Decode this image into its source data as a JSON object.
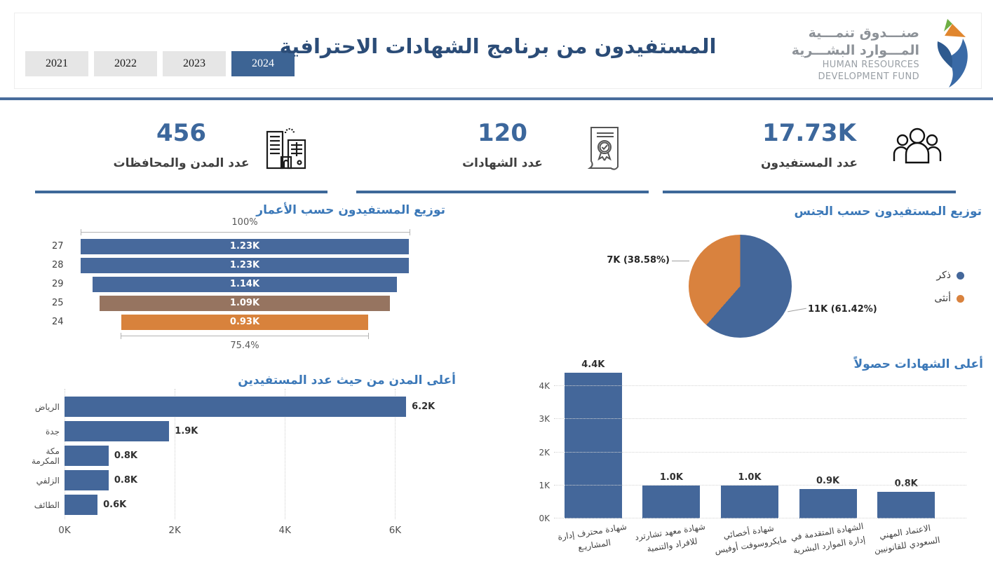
{
  "header": {
    "title": "المستفيدون من برنامج الشهادات الاحترافية",
    "years": [
      {
        "label": "2021",
        "selected": false
      },
      {
        "label": "2022",
        "selected": false
      },
      {
        "label": "2023",
        "selected": false
      },
      {
        "label": "2024",
        "selected": true
      }
    ],
    "logo": {
      "arabic_line1": "صنـــدوق تنمـــية",
      "arabic_line2": "المـــوارد البشـــرية",
      "english_line1": "HUMAN RESOURCES",
      "english_line2": "DEVELOPMENT FUND"
    }
  },
  "kpis": [
    {
      "value": "456",
      "label": "عدد المدن والمحافظات",
      "icon": "buildings-icon"
    },
    {
      "value": "120",
      "label": "عدد الشهادات",
      "icon": "certificate-icon"
    },
    {
      "value": "17.73K",
      "label": "عدد المستفيدون",
      "icon": "people-icon"
    }
  ],
  "colors": {
    "accent_blue": "#3d6899",
    "bar_blue": "#44679a",
    "bar_brown": "#967460",
    "bar_orange": "#d8823c",
    "chart_title_blue": "#3b78b8",
    "header_title_navy": "#2b4c77",
    "selected_year_bg": "#3d6494",
    "year_bg": "#e6e6e6",
    "divider": "#486c9c"
  },
  "chart_data": [
    {
      "type": "bar",
      "name": "age-distribution-funnel",
      "title": "توزيع المستفيدون حسب الأعمار",
      "orientation": "horizontal-funnel",
      "categories": [
        "27",
        "28",
        "29",
        "25",
        "24"
      ],
      "values": [
        1230,
        1230,
        1140,
        1090,
        930
      ],
      "value_labels": [
        "1.23K",
        "1.23K",
        "1.14K",
        "1.09K",
        "0.93K"
      ],
      "bar_pcts": [
        100,
        100,
        92.7,
        88.6,
        75.4
      ],
      "bar_colors": [
        "#47699c",
        "#47699c",
        "#47699c",
        "#967460",
        "#d8823c"
      ],
      "top_marker": "100%",
      "bottom_marker": "75.4%"
    },
    {
      "type": "pie",
      "name": "gender-distribution",
      "title": "توزيع المستفيدون حسب الجنس",
      "legend_position": "right",
      "slices": [
        {
          "label": "ذكر",
          "value_label": "11K (61.42%)",
          "pct": 61.42,
          "color": "#44679a"
        },
        {
          "label": "أنثى",
          "value_label": "7K (38.58%)",
          "pct": 38.58,
          "color": "#d9823e"
        }
      ]
    },
    {
      "type": "bar",
      "name": "top-cities",
      "title": "أعلى المدن من حيث عدد المستفيدين",
      "orientation": "horizontal",
      "categories": [
        "الرياض",
        "جدة",
        "مكة المكرمة",
        "الزلفي",
        "الطائف"
      ],
      "values_k": [
        6.2,
        1.9,
        0.8,
        0.8,
        0.6
      ],
      "value_labels": [
        "6.2K",
        "1.9K",
        "0.8K",
        "0.8K",
        "0.6K"
      ],
      "x_ticks": [
        "0K",
        "2K",
        "4K",
        "6K"
      ],
      "x_tick_vals_k": [
        0,
        2,
        4,
        6
      ],
      "xlim_k": [
        0,
        7
      ],
      "bar_color": "#44679a",
      "grid": "dotted-vertical"
    },
    {
      "type": "bar",
      "name": "top-certificates",
      "title": "أعلى الشهادات حصولاً",
      "orientation": "vertical",
      "categories": [
        [
          "شهادة محترف إدارة",
          "المشاريـع"
        ],
        [
          "شهادة معهد تشارترد",
          "للافراد والتنمية"
        ],
        [
          "شهادة أخصائي",
          "مايكروسوفت أوفيس"
        ],
        [
          "الشهادة المتقدمة في",
          "إدارة الموارد البشرية"
        ],
        [
          "الاعتماد المهني",
          "السعودي للقانونيين"
        ]
      ],
      "values_k": [
        4.4,
        1.0,
        1.0,
        0.9,
        0.8
      ],
      "value_labels": [
        "4.4K",
        "1.0K",
        "1.0K",
        "0.9K",
        "0.8K"
      ],
      "y_ticks": [
        "0K",
        "1K",
        "2K",
        "3K",
        "4K"
      ],
      "y_tick_vals_k": [
        0,
        1,
        2,
        3,
        4
      ],
      "ylim_k": [
        0,
        4.6
      ],
      "bar_color": "#44679a",
      "grid": "dotted-horizontal"
    }
  ]
}
